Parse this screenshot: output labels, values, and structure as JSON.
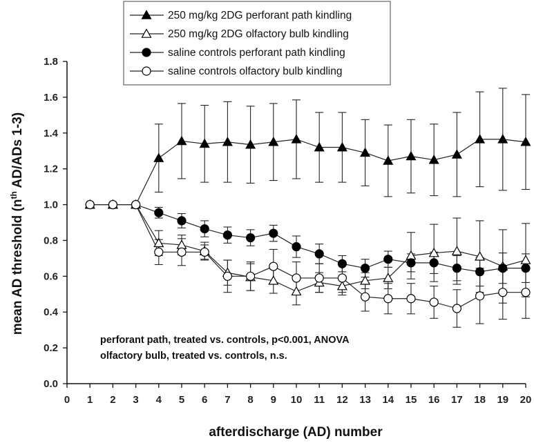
{
  "chart_data": {
    "type": "line",
    "xlabel": "afterdischarge (AD) number",
    "ylabel_main": "mean AD threshold (n",
    "ylabel_sup": "th",
    "ylabel_tail": " AD/ADs 1-3)",
    "xlim": [
      0,
      20
    ],
    "ylim": [
      0,
      1.8
    ],
    "xticks": [
      0,
      1,
      2,
      3,
      4,
      5,
      6,
      7,
      8,
      9,
      10,
      11,
      12,
      13,
      14,
      15,
      16,
      17,
      18,
      19,
      20
    ],
    "yticks": [
      "0.0",
      "0.2",
      "0.4",
      "0.6",
      "0.8",
      "1.0",
      "1.2",
      "1.4",
      "1.6",
      "1.8"
    ],
    "grid": false,
    "legend_position": "top-center",
    "x": [
      1,
      2,
      3,
      4,
      5,
      6,
      7,
      8,
      9,
      10,
      11,
      12,
      13,
      14,
      15,
      16,
      17,
      18,
      19,
      20
    ],
    "series": [
      {
        "name": "250 mg/kg 2DG perforant path kindling",
        "marker": "triangle-filled",
        "values": [
          1.0,
          1.0,
          1.0,
          1.26,
          1.355,
          1.34,
          1.35,
          1.335,
          1.35,
          1.365,
          1.32,
          1.32,
          1.29,
          1.245,
          1.27,
          1.25,
          1.28,
          1.365,
          1.365,
          1.35
        ],
        "errors": [
          0,
          0,
          0,
          0.19,
          0.21,
          0.215,
          0.225,
          0.215,
          0.215,
          0.22,
          0.195,
          0.195,
          0.185,
          0.2,
          0.205,
          0.2,
          0.235,
          0.265,
          0.285,
          0.265
        ]
      },
      {
        "name": "250 mg/kg 2DG olfactory bulb kindling",
        "marker": "triangle-open",
        "values": [
          1.0,
          1.0,
          1.0,
          0.785,
          0.775,
          0.74,
          0.62,
          0.595,
          0.575,
          0.515,
          0.565,
          0.545,
          0.575,
          0.59,
          0.715,
          0.73,
          0.74,
          0.71,
          0.655,
          0.69
        ],
        "errors": [
          0,
          0,
          0,
          0.07,
          0.055,
          0.05,
          0.07,
          0.075,
          0.07,
          0.075,
          0.055,
          0.05,
          0.045,
          0.06,
          0.13,
          0.16,
          0.185,
          0.2,
          0.205,
          0.205
        ]
      },
      {
        "name": "saline controls perforant path kindling",
        "marker": "circle-filled",
        "values": [
          1.0,
          1.0,
          1.0,
          0.955,
          0.91,
          0.865,
          0.83,
          0.815,
          0.84,
          0.765,
          0.725,
          0.67,
          0.645,
          0.695,
          0.675,
          0.675,
          0.645,
          0.625,
          0.645,
          0.645
        ],
        "errors": [
          0,
          0,
          0,
          0.03,
          0.04,
          0.045,
          0.045,
          0.045,
          0.045,
          0.06,
          0.055,
          0.045,
          0.05,
          0.045,
          0.05,
          0.06,
          0.07,
          0.08,
          0.085,
          0.08
        ]
      },
      {
        "name": "saline controls olfactory bulb kindling",
        "marker": "circle-open",
        "values": [
          1.0,
          1.0,
          1.0,
          0.735,
          0.735,
          0.735,
          0.6,
          0.6,
          0.655,
          0.59,
          0.59,
          0.59,
          0.485,
          0.475,
          0.475,
          0.455,
          0.42,
          0.49,
          0.51,
          0.51
        ],
        "errors": [
          0,
          0,
          0,
          0.07,
          0.075,
          0.04,
          0.09,
          0.08,
          0.095,
          0.09,
          0.08,
          0.08,
          0.08,
          0.085,
          0.085,
          0.09,
          0.105,
          0.155,
          0.15,
          0.145
        ]
      }
    ],
    "annotations": [
      "perforant path, treated vs. controls, p<0.001, ANOVA",
      "olfactory bulb, treated vs. controls, n.s."
    ]
  }
}
